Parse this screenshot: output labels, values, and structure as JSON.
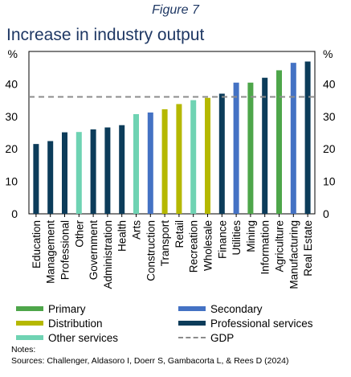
{
  "figure_label": "Figure 7",
  "chart_data": {
    "type": "bar",
    "title": "Increase in industry output",
    "ylabel": "%",
    "ylim": [
      0,
      50
    ],
    "yticks": [
      0,
      10,
      20,
      30,
      40
    ],
    "grid": false,
    "categories": [
      "Education",
      "Management",
      "Professional",
      "Other",
      "Government",
      "Administration",
      "Health",
      "Arts",
      "Construction",
      "Transport",
      "Retail",
      "Recreation",
      "Wholesale",
      "Finance",
      "Utilities",
      "Mining",
      "Information",
      "Agriculture",
      "Manufacturing",
      "Real Estate"
    ],
    "values": [
      21.5,
      22.4,
      25.1,
      25.2,
      26.0,
      26.6,
      27.3,
      30.7,
      31.2,
      32.2,
      33.8,
      35.0,
      35.7,
      37.0,
      40.4,
      40.4,
      41.9,
      44.2,
      46.5,
      46.9
    ],
    "groups": [
      "professional",
      "professional",
      "professional",
      "other_services",
      "professional",
      "professional",
      "professional",
      "other_services",
      "secondary",
      "distribution",
      "distribution",
      "other_services",
      "distribution",
      "professional",
      "secondary",
      "primary",
      "professional",
      "primary",
      "secondary",
      "professional"
    ],
    "reference_line": {
      "name": "GDP",
      "value": 36.0
    },
    "legend": [
      {
        "key": "primary",
        "label": "Primary",
        "color": "#4ea64a"
      },
      {
        "key": "secondary",
        "label": "Secondary",
        "color": "#4472c4"
      },
      {
        "key": "distribution",
        "label": "Distribution",
        "color": "#b5b800"
      },
      {
        "key": "professional",
        "label": "Professional services",
        "color": "#0c3c5a"
      },
      {
        "key": "other_services",
        "label": "Other services",
        "color": "#6fd3b3"
      },
      {
        "key": "gdp",
        "label": "GDP",
        "color": "#8c8c8c"
      }
    ]
  },
  "notes": {
    "heading": "Notes:",
    "sources": "Sources: Challenger, Aldasoro I, Doerr S, Gambacorta L, & Rees D (2024)"
  }
}
